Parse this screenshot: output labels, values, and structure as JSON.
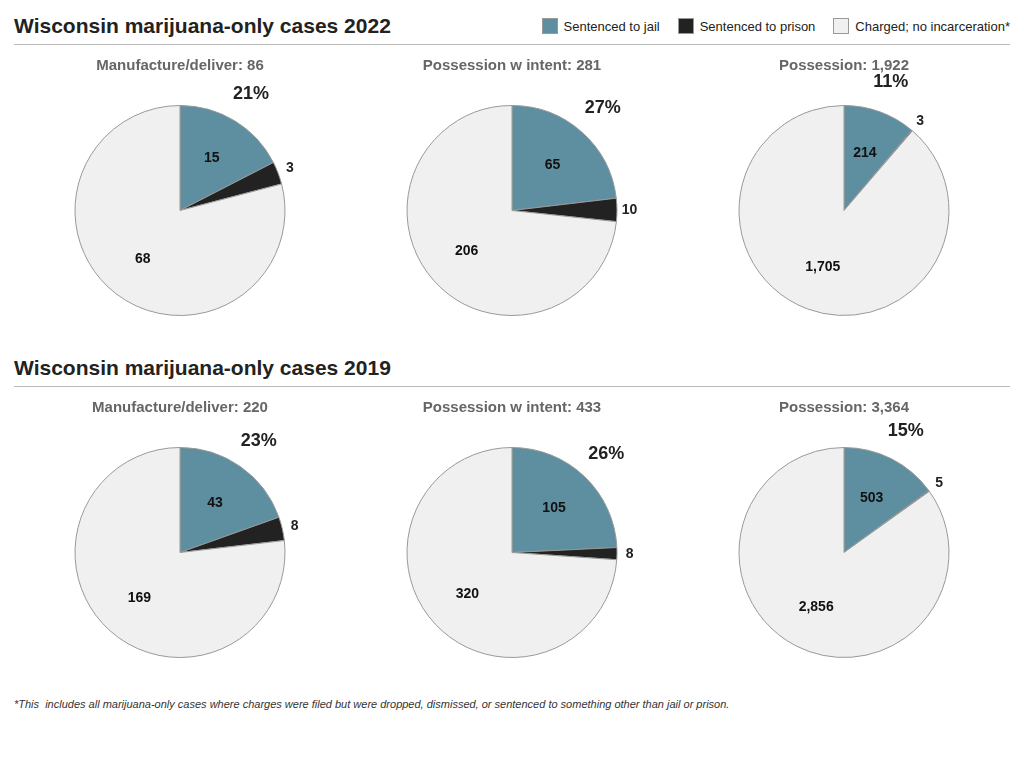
{
  "chart_data": [
    {
      "type": "pie",
      "title": "Wisconsin marijuana-only cases 2022",
      "categories": [
        "Sentenced to jail",
        "Sentenced to prison",
        "Charged; no incarceration*"
      ],
      "colors": [
        "#5d8fa0",
        "#222222",
        "#f0f0f0"
      ],
      "legend": "top",
      "data_labels": true,
      "series": [
        {
          "name": "Manufacture/deliver: 86",
          "values": [
            15,
            3,
            68
          ],
          "value_labels": [
            "15",
            "3",
            "68"
          ],
          "annotation": "21%"
        },
        {
          "name": "Possession w intent: 281",
          "values": [
            65,
            10,
            206
          ],
          "value_labels": [
            "65",
            "10",
            "206"
          ],
          "annotation": "27%"
        },
        {
          "name": "Possession: 1,922",
          "values": [
            214,
            3,
            1705
          ],
          "value_labels": [
            "214",
            "3",
            "1,705"
          ],
          "annotation": "11%"
        }
      ]
    },
    {
      "type": "pie",
      "title": "Wisconsin marijuana-only cases 2019",
      "categories": [
        "Sentenced to jail",
        "Sentenced to prison",
        "Charged; no incarceration*"
      ],
      "colors": [
        "#5d8fa0",
        "#222222",
        "#f0f0f0"
      ],
      "data_labels": true,
      "series": [
        {
          "name": "Manufacture/deliver: 220",
          "values": [
            43,
            8,
            169
          ],
          "value_labels": [
            "43",
            "8",
            "169"
          ],
          "annotation": "23%"
        },
        {
          "name": "Possession w intent: 433",
          "values": [
            105,
            8,
            320
          ],
          "value_labels": [
            "105",
            "8",
            "320"
          ],
          "annotation": "26%"
        },
        {
          "name": "Possession: 3,364",
          "values": [
            503,
            5,
            2856
          ],
          "value_labels": [
            "503",
            "5",
            "2,856"
          ],
          "annotation": "15%"
        }
      ],
      "annotations": [
        "*This  includes all marijuana-only cases where charges were filed but were dropped, dismissed, or sentenced to something other than jail or prison."
      ]
    }
  ]
}
